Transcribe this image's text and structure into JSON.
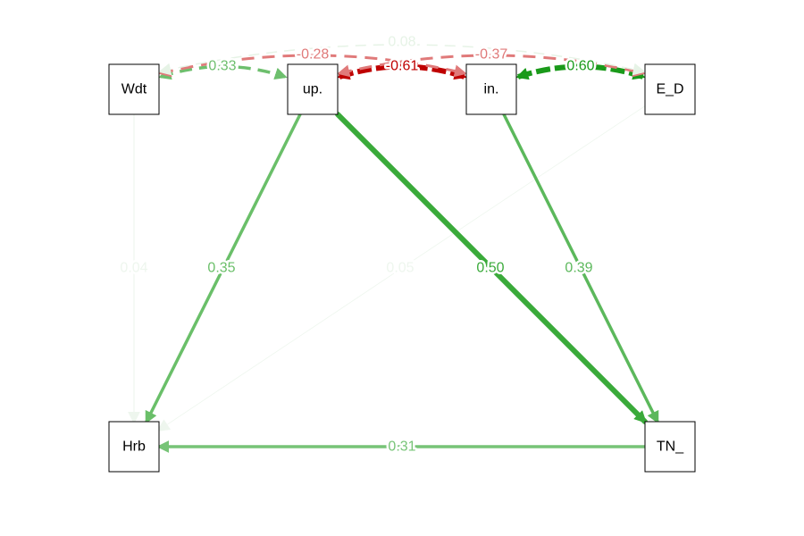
{
  "diagram": {
    "type": "path-diagram",
    "nodes": [
      {
        "id": "Wdt",
        "label": "Wdt"
      },
      {
        "id": "up",
        "label": "up."
      },
      {
        "id": "in",
        "label": "in."
      },
      {
        "id": "ED",
        "label": "E_D"
      },
      {
        "id": "Hrb",
        "label": "Hrb"
      },
      {
        "id": "TN",
        "label": "TN_"
      }
    ],
    "edges": [
      {
        "id": "Wdt-Hrb",
        "from": "Wdt",
        "to": "Hrb",
        "label": "0.04",
        "kind": "directed",
        "sign": "positive",
        "color": "#eef6ee"
      },
      {
        "id": "up-Hrb",
        "from": "up",
        "to": "Hrb",
        "label": "0.35",
        "kind": "directed",
        "sign": "positive",
        "color": "#6abf69"
      },
      {
        "id": "ED-Hrb",
        "from": "ED",
        "to": "Hrb",
        "label": "0.05",
        "kind": "directed",
        "sign": "positive",
        "color": "#eef6ee"
      },
      {
        "id": "up-TN",
        "from": "up",
        "to": "TN",
        "label": "0.50",
        "kind": "directed",
        "sign": "positive",
        "color": "#3aaa3a"
      },
      {
        "id": "in-TN",
        "from": "in",
        "to": "TN",
        "label": "0.39",
        "kind": "directed",
        "sign": "positive",
        "color": "#5cb85c"
      },
      {
        "id": "TN-Hrb",
        "from": "TN",
        "to": "Hrb",
        "label": "0.31",
        "kind": "directed",
        "sign": "positive",
        "color": "#77c477"
      },
      {
        "id": "Wdt-up",
        "from": "Wdt",
        "to": "up",
        "label": "0.33",
        "kind": "covariance",
        "sign": "positive",
        "color": "#6dbf6d"
      },
      {
        "id": "up-in",
        "from": "up",
        "to": "in",
        "label": "-0.61",
        "kind": "covariance",
        "sign": "negative",
        "color": "#bf0000"
      },
      {
        "id": "in-ED",
        "from": "in",
        "to": "ED",
        "label": "0.60",
        "kind": "covariance",
        "sign": "positive",
        "color": "#1a9a1a"
      },
      {
        "id": "Wdt-in",
        "from": "Wdt",
        "to": "in",
        "label": "-0.28",
        "kind": "covariance",
        "sign": "negative",
        "color": "#e07a7a"
      },
      {
        "id": "up-ED",
        "from": "up",
        "to": "ED",
        "label": "-0.37",
        "kind": "covariance",
        "sign": "negative",
        "color": "#e07a7a"
      },
      {
        "id": "Wdt-ED",
        "from": "Wdt",
        "to": "ED",
        "label": "0.08",
        "kind": "covariance",
        "sign": "positive",
        "color": "#e6f3e6"
      }
    ]
  }
}
